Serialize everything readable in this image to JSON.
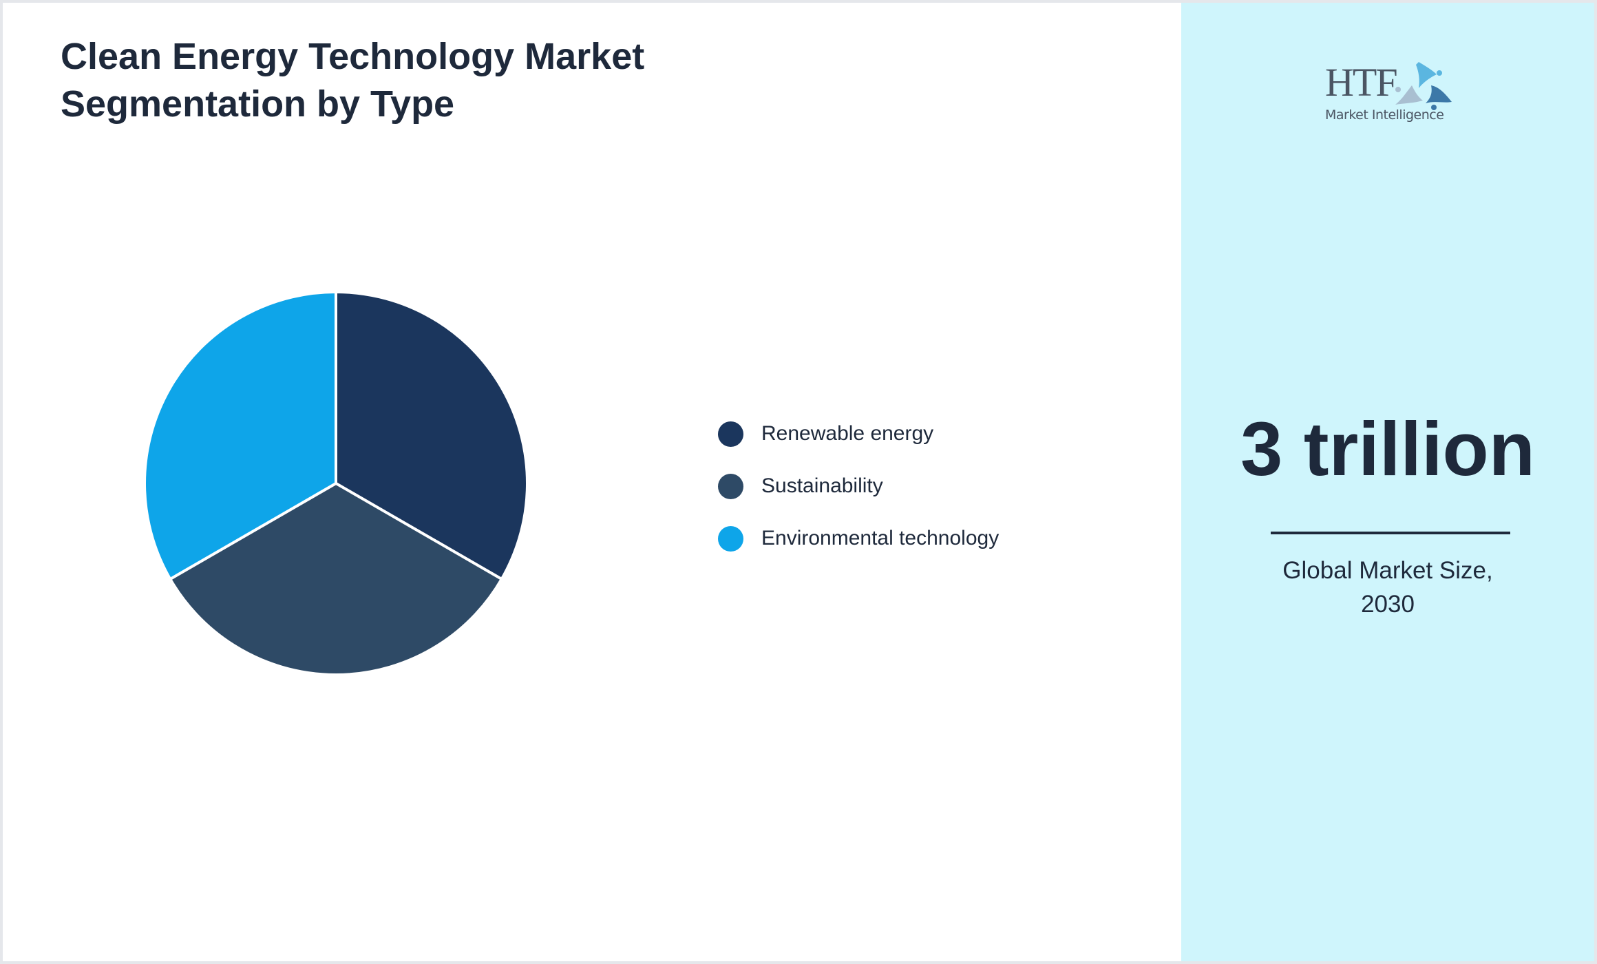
{
  "title": {
    "line1": "Clean Energy Technology Market",
    "line2": "Segmentation by Type"
  },
  "legend": {
    "items": [
      {
        "label": "Renewable energy",
        "color": "#1b365d"
      },
      {
        "label": "Sustainability",
        "color": "#2e4a66"
      },
      {
        "label": "Environmental technology",
        "color": "#0ea5e9"
      }
    ]
  },
  "side_panel": {
    "logo": {
      "brand": "HTF",
      "tagline": "Market Intelligence",
      "icon": "people-circle-logo-icon"
    },
    "value": "3 trillion",
    "caption_line1": "Global Market Size,",
    "caption_line2": "2030",
    "background": "#cff5fc"
  },
  "chart_data": {
    "type": "pie",
    "title": "Clean Energy Technology Market Segmentation by Type",
    "categories": [
      "Renewable energy",
      "Sustainability",
      "Environmental technology"
    ],
    "values": [
      33.33,
      33.33,
      33.33
    ],
    "colors": [
      "#1b365d",
      "#2e4a66",
      "#0ea5e9"
    ],
    "start_angle_deg": 0,
    "direction": "clockwise",
    "legend_position": "right",
    "annotation": {
      "value": "3 trillion",
      "label": "Global Market Size, 2030"
    }
  }
}
